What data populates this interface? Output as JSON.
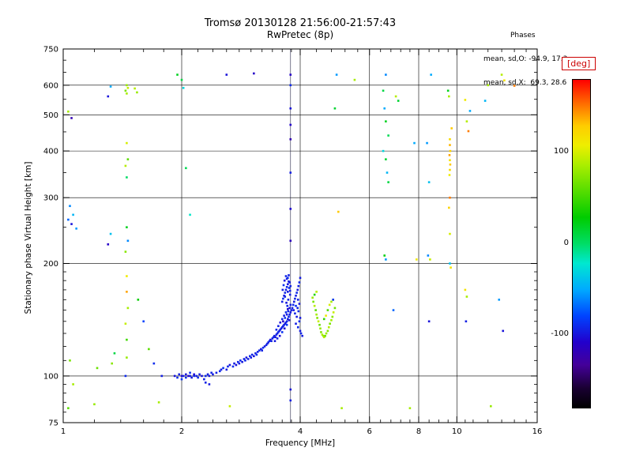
{
  "header": {
    "title": "Tromsø 20130128 21:56:00-21:57:43",
    "subtitle": "RwPretec (8p)",
    "phases": {
      "heading": "Phases",
      "line_o": "mean, sd,O: -94.9, 17.3",
      "line_x": "mean, sd,X:  69.3, 28.6"
    }
  },
  "chart_data": {
    "type": "scatter",
    "title": "Tromsø 20130128 21:56:00-21:57:43",
    "subtitle": "RwPretec (8p)",
    "xlabel": "Frequency [MHz]",
    "ylabel": "Stationary phase Virtual Height [km]",
    "xscale": "log",
    "yscale": "log",
    "xlim": [
      1,
      16
    ],
    "ylim": [
      75,
      750
    ],
    "xticks": [
      1,
      2,
      4,
      6,
      8,
      10,
      16
    ],
    "yticks": [
      75,
      100,
      200,
      300,
      400,
      500,
      600,
      750
    ],
    "x_minor_ticks": [
      1.2,
      1.4,
      1.6,
      1.8,
      2.2,
      2.4,
      2.6,
      2.8,
      3.0,
      3.2,
      3.4,
      3.6,
      3.8,
      4.4,
      4.8,
      5.2,
      5.6,
      6.4,
      6.8,
      7.2,
      7.6,
      8.5,
      9.0,
      9.5,
      10.5,
      11,
      12,
      13,
      14,
      15
    ],
    "y_minor_ticks": [
      80,
      85,
      90,
      95,
      110,
      120,
      130,
      140,
      150,
      160,
      170,
      180,
      190,
      250,
      350,
      450,
      550,
      650,
      700
    ],
    "grid": true,
    "interference_line_mhz": 3.78,
    "colorbar": {
      "label": "[deg]",
      "label_color": "#cc0000",
      "range": [
        -180,
        180
      ],
      "ticks": [
        100,
        0,
        -100
      ],
      "stops": [
        [
          0,
          "#000000"
        ],
        [
          0.06,
          "#1a0033"
        ],
        [
          0.13,
          "#440099"
        ],
        [
          0.2,
          "#2200cc"
        ],
        [
          0.28,
          "#0044ff"
        ],
        [
          0.36,
          "#00aaff"
        ],
        [
          0.44,
          "#00e8d0"
        ],
        [
          0.5,
          "#00dd66"
        ],
        [
          0.58,
          "#00cc00"
        ],
        [
          0.66,
          "#55dd00"
        ],
        [
          0.74,
          "#aaee00"
        ],
        [
          0.8,
          "#eeee00"
        ],
        [
          0.86,
          "#ffcc00"
        ],
        [
          0.92,
          "#ff7700"
        ],
        [
          1,
          "#ff0000"
        ]
      ]
    },
    "points": [
      [
        1.92,
        100,
        -100
      ],
      [
        1.95,
        99,
        -90
      ],
      [
        1.97,
        101,
        -95
      ],
      [
        2.0,
        100,
        -105
      ],
      [
        2.0,
        98,
        -85
      ],
      [
        2.02,
        100,
        -95
      ],
      [
        2.05,
        101,
        -100
      ],
      [
        2.05,
        99,
        -90
      ],
      [
        2.08,
        100,
        -110
      ],
      [
        2.1,
        100,
        -95
      ],
      [
        2.1,
        102,
        -88
      ],
      [
        2.12,
        99,
        -97
      ],
      [
        2.15,
        100,
        -92
      ],
      [
        2.15,
        101,
        -103
      ],
      [
        2.18,
        100,
        -95
      ],
      [
        2.2,
        99,
        -90
      ],
      [
        2.22,
        101,
        -96
      ],
      [
        2.25,
        100,
        -100
      ],
      [
        2.28,
        98,
        -94
      ],
      [
        2.3,
        100,
        -90
      ],
      [
        2.33,
        101,
        -95
      ],
      [
        2.35,
        100,
        -98
      ],
      [
        2.38,
        102,
        -92
      ],
      [
        2.4,
        101,
        -96
      ],
      [
        2.3,
        96,
        -93
      ],
      [
        2.35,
        95,
        -97
      ],
      [
        2.45,
        102,
        -95
      ],
      [
        2.5,
        103,
        -90
      ],
      [
        2.52,
        104,
        -95
      ],
      [
        2.55,
        105,
        -88
      ],
      [
        2.6,
        104,
        -97
      ],
      [
        2.62,
        106,
        -92
      ],
      [
        2.65,
        107,
        -99
      ],
      [
        2.7,
        106,
        -90
      ],
      [
        2.72,
        108,
        -95
      ],
      [
        2.75,
        107,
        -101
      ],
      [
        2.78,
        109,
        -93
      ],
      [
        2.8,
        108,
        -96
      ],
      [
        2.82,
        110,
        -89
      ],
      [
        2.85,
        109,
        -98
      ],
      [
        2.88,
        111,
        -94
      ],
      [
        2.9,
        110,
        -91
      ],
      [
        2.92,
        112,
        -99
      ],
      [
        2.95,
        111,
        -95
      ],
      [
        2.98,
        113,
        -90
      ],
      [
        3.0,
        112,
        -97
      ],
      [
        3.02,
        114,
        -93
      ],
      [
        3.05,
        113,
        -100
      ],
      [
        3.08,
        115,
        -95
      ],
      [
        3.1,
        114,
        -88
      ],
      [
        3.12,
        116,
        -96
      ],
      [
        3.15,
        117,
        -92
      ],
      [
        3.18,
        118,
        -98
      ],
      [
        3.2,
        117,
        -94
      ],
      [
        3.22,
        119,
        -90
      ],
      [
        3.25,
        120,
        -97
      ],
      [
        3.28,
        121,
        -93
      ],
      [
        3.3,
        122,
        -95
      ],
      [
        3.32,
        123,
        -96
      ],
      [
        3.34,
        124,
        -91
      ],
      [
        3.36,
        125,
        -99
      ],
      [
        3.38,
        124,
        -94
      ],
      [
        3.4,
        126,
        -97
      ],
      [
        3.42,
        127,
        -90
      ],
      [
        3.44,
        128,
        -95
      ],
      [
        3.46,
        127,
        -100
      ],
      [
        3.48,
        129,
        -93
      ],
      [
        3.5,
        130,
        -96
      ],
      [
        3.52,
        131,
        -89
      ],
      [
        3.54,
        132,
        -97
      ],
      [
        3.56,
        133,
        -94
      ],
      [
        3.58,
        134,
        -98
      ],
      [
        3.6,
        135,
        -92
      ],
      [
        3.62,
        136,
        -96
      ],
      [
        3.64,
        137,
        -91
      ],
      [
        3.66,
        138,
        -99
      ],
      [
        3.68,
        139,
        -95
      ],
      [
        3.7,
        140,
        -93
      ],
      [
        3.72,
        142,
        -97
      ],
      [
        3.74,
        144,
        -90
      ],
      [
        3.76,
        146,
        -95
      ],
      [
        3.78,
        148,
        -98
      ],
      [
        3.8,
        150,
        -94
      ],
      [
        3.55,
        128,
        -102
      ],
      [
        3.6,
        131,
        -87
      ],
      [
        3.65,
        134,
        -105
      ],
      [
        3.7,
        137,
        -85
      ],
      [
        3.75,
        141,
        -100
      ],
      [
        3.5,
        126,
        -93
      ],
      [
        3.45,
        124,
        -97
      ],
      [
        3.62,
        140,
        -110
      ],
      [
        3.66,
        143,
        -88
      ],
      [
        3.7,
        146,
        -96
      ],
      [
        3.73,
        149,
        -92
      ],
      [
        3.76,
        152,
        -99
      ],
      [
        3.78,
        155,
        -94
      ],
      [
        3.72,
        151,
        -105
      ],
      [
        3.68,
        148,
        -90
      ],
      [
        3.64,
        145,
        -97
      ],
      [
        3.6,
        142,
        -93
      ],
      [
        3.56,
        139,
        -100
      ],
      [
        3.52,
        136,
        -95
      ],
      [
        3.48,
        133,
        -91
      ],
      [
        3.6,
        158,
        -95
      ],
      [
        3.62,
        161,
        -90
      ],
      [
        3.64,
        164,
        -98
      ],
      [
        3.66,
        167,
        -93
      ],
      [
        3.68,
        170,
        -96
      ],
      [
        3.7,
        173,
        -91
      ],
      [
        3.72,
        176,
        -99
      ],
      [
        3.74,
        179,
        -94
      ],
      [
        3.7,
        182,
        -97
      ],
      [
        3.68,
        185,
        -92
      ],
      [
        3.65,
        180,
        -100
      ],
      [
        3.63,
        175,
        -88
      ],
      [
        3.61,
        170,
        -95
      ],
      [
        3.66,
        163,
        -93
      ],
      [
        3.72,
        168,
        -97
      ],
      [
        3.75,
        172,
        -90
      ],
      [
        3.77,
        165,
        -96
      ],
      [
        3.73,
        160,
        -94
      ],
      [
        3.69,
        157,
        -98
      ],
      [
        3.71,
        154,
        -92
      ],
      [
        3.74,
        186,
        -95
      ],
      [
        3.72,
        183,
        -89
      ],
      [
        3.76,
        178,
        -97
      ],
      [
        3.78,
        174,
        -93
      ],
      [
        3.77,
        169,
        -96
      ],
      [
        3.82,
        152,
        -95
      ],
      [
        3.84,
        155,
        -91
      ],
      [
        3.86,
        158,
        -97
      ],
      [
        3.88,
        161,
        -93
      ],
      [
        3.9,
        164,
        -96
      ],
      [
        3.92,
        167,
        -90
      ],
      [
        3.94,
        170,
        -98
      ],
      [
        3.96,
        174,
        -94
      ],
      [
        3.98,
        178,
        -92
      ],
      [
        4.0,
        183,
        -96
      ],
      [
        3.85,
        150,
        -99
      ],
      [
        3.9,
        154,
        -88
      ],
      [
        3.95,
        160,
        -95
      ],
      [
        3.88,
        147,
        -93
      ],
      [
        3.92,
        144,
        -97
      ],
      [
        3.96,
        149,
        -91
      ],
      [
        3.98,
        156,
        -98
      ],
      [
        3.94,
        152,
        -94
      ],
      [
        3.9,
        138,
        -95
      ],
      [
        3.95,
        135,
        -92
      ],
      [
        4.0,
        132,
        -97
      ],
      [
        4.02,
        130,
        -93
      ],
      [
        4.05,
        128,
        -96
      ],
      [
        3.98,
        140,
        -90
      ],
      [
        4.0,
        143,
        -98
      ],
      [
        4.3,
        162,
        80
      ],
      [
        4.32,
        158,
        70
      ],
      [
        4.35,
        154,
        90
      ],
      [
        4.38,
        150,
        60
      ],
      [
        4.4,
        146,
        85
      ],
      [
        4.42,
        143,
        75
      ],
      [
        4.45,
        140,
        95
      ],
      [
        4.48,
        137,
        65
      ],
      [
        4.5,
        134,
        80
      ],
      [
        4.52,
        131,
        72
      ],
      [
        4.55,
        129,
        88
      ],
      [
        4.58,
        128,
        78
      ],
      [
        4.6,
        127,
        92
      ],
      [
        4.63,
        128,
        68
      ],
      [
        4.66,
        130,
        82
      ],
      [
        4.7,
        132,
        74
      ],
      [
        4.73,
        135,
        90
      ],
      [
        4.76,
        138,
        70
      ],
      [
        4.8,
        141,
        85
      ],
      [
        4.83,
        144,
        76
      ],
      [
        4.86,
        148,
        95
      ],
      [
        4.9,
        152,
        66
      ],
      [
        4.75,
        155,
        100
      ],
      [
        4.7,
        150,
        55
      ],
      [
        4.65,
        145,
        110
      ],
      [
        4.6,
        142,
        45
      ],
      [
        4.8,
        158,
        85
      ],
      [
        4.85,
        160,
        75
      ],
      [
        4.35,
        165,
        40
      ],
      [
        4.4,
        168,
        90
      ],
      [
        3.78,
        640,
        -110
      ],
      [
        3.78,
        600,
        -90
      ],
      [
        3.78,
        520,
        -100
      ],
      [
        3.78,
        470,
        -108
      ],
      [
        3.78,
        430,
        -120
      ],
      [
        3.78,
        350,
        -95
      ],
      [
        3.78,
        280,
        -105
      ],
      [
        3.78,
        230,
        -115
      ],
      [
        3.78,
        92,
        -100
      ],
      [
        3.78,
        86,
        -95
      ],
      [
        1.45,
        600,
        80
      ],
      [
        1.46,
        590,
        95
      ],
      [
        1.44,
        580,
        70
      ],
      [
        1.45,
        570,
        85
      ],
      [
        1.45,
        420,
        100
      ],
      [
        1.46,
        380,
        60
      ],
      [
        1.44,
        365,
        90
      ],
      [
        1.45,
        340,
        0
      ],
      [
        1.45,
        250,
        20
      ],
      [
        1.46,
        230,
        -60
      ],
      [
        1.44,
        215,
        75
      ],
      [
        1.45,
        185,
        110
      ],
      [
        1.45,
        168,
        140
      ],
      [
        1.46,
        152,
        85
      ],
      [
        1.44,
        138,
        95
      ],
      [
        1.45,
        125,
        50
      ],
      [
        1.45,
        112,
        80
      ],
      [
        1.44,
        100,
        -90
      ],
      [
        1.32,
        595,
        -50
      ],
      [
        1.3,
        560,
        -100
      ],
      [
        1.35,
        115,
        10
      ],
      [
        1.33,
        108,
        75
      ],
      [
        1.3,
        225,
        -110
      ],
      [
        1.32,
        240,
        -40
      ],
      [
        1.03,
        510,
        85
      ],
      [
        1.05,
        490,
        -120
      ],
      [
        1.04,
        285,
        -60
      ],
      [
        1.06,
        270,
        -45
      ],
      [
        1.03,
        262,
        -70
      ],
      [
        1.05,
        255,
        -100
      ],
      [
        1.08,
        248,
        -55
      ],
      [
        1.04,
        110,
        70
      ],
      [
        1.06,
        95,
        85
      ],
      [
        1.03,
        82,
        60
      ],
      [
        1.2,
        84,
        80
      ],
      [
        1.22,
        105,
        65
      ],
      [
        1.55,
        160,
        30
      ],
      [
        1.6,
        140,
        -80
      ],
      [
        1.65,
        118,
        60
      ],
      [
        1.7,
        108,
        -90
      ],
      [
        1.75,
        85,
        85
      ],
      [
        1.78,
        100,
        -95
      ],
      [
        1.52,
        588,
        90
      ],
      [
        1.54,
        574,
        80
      ],
      [
        1.95,
        640,
        20
      ],
      [
        2.0,
        620,
        10
      ],
      [
        2.02,
        590,
        -30
      ],
      [
        2.05,
        360,
        5
      ],
      [
        2.1,
        270,
        -20
      ],
      [
        2.6,
        640,
        -100
      ],
      [
        2.65,
        83,
        95
      ],
      [
        3.05,
        645,
        -110
      ],
      [
        4.95,
        640,
        -55
      ],
      [
        4.9,
        520,
        15
      ],
      [
        5.0,
        275,
        130
      ],
      [
        4.85,
        160,
        -85
      ],
      [
        5.1,
        82,
        85
      ],
      [
        5.5,
        620,
        85
      ],
      [
        6.6,
        640,
        -60
      ],
      [
        6.5,
        580,
        10
      ],
      [
        6.55,
        520,
        -50
      ],
      [
        6.6,
        480,
        20
      ],
      [
        6.7,
        440,
        5
      ],
      [
        6.5,
        400,
        -30
      ],
      [
        6.6,
        380,
        15
      ],
      [
        6.65,
        350,
        -45
      ],
      [
        6.7,
        330,
        10
      ],
      [
        6.55,
        210,
        25
      ],
      [
        6.6,
        205,
        -55
      ],
      [
        7.0,
        560,
        90
      ],
      [
        7.1,
        545,
        15
      ],
      [
        6.9,
        150,
        -70
      ],
      [
        7.6,
        82,
        85
      ],
      [
        7.8,
        420,
        -50
      ],
      [
        7.9,
        205,
        110
      ],
      [
        8.4,
        420,
        -55
      ],
      [
        8.5,
        330,
        -40
      ],
      [
        8.45,
        210,
        -60
      ],
      [
        8.55,
        205,
        95
      ],
      [
        8.5,
        140,
        -100
      ],
      [
        8.6,
        640,
        -50
      ],
      [
        9.6,
        430,
        120
      ],
      [
        9.6,
        415,
        135
      ],
      [
        9.62,
        400,
        125
      ],
      [
        9.58,
        390,
        140
      ],
      [
        9.6,
        378,
        115
      ],
      [
        9.62,
        368,
        130
      ],
      [
        9.6,
        356,
        120
      ],
      [
        9.58,
        345,
        110
      ],
      [
        9.6,
        300,
        150
      ],
      [
        9.55,
        282,
        125
      ],
      [
        9.6,
        240,
        100
      ],
      [
        9.5,
        580,
        20
      ],
      [
        9.55,
        560,
        85
      ],
      [
        9.6,
        200,
        -40
      ],
      [
        9.65,
        195,
        115
      ],
      [
        9.7,
        460,
        130
      ],
      [
        10.5,
        548,
        110
      ],
      [
        10.6,
        480,
        90
      ],
      [
        10.7,
        452,
        150
      ],
      [
        10.5,
        170,
        115
      ],
      [
        10.6,
        163,
        85
      ],
      [
        10.55,
        140,
        -95
      ],
      [
        10.8,
        512,
        -50
      ],
      [
        12.0,
        600,
        85
      ],
      [
        11.8,
        545,
        -45
      ],
      [
        12.2,
        83,
        80
      ],
      [
        13.0,
        640,
        90
      ],
      [
        13.2,
        618,
        115
      ],
      [
        12.8,
        160,
        -55
      ],
      [
        13.1,
        132,
        -100
      ],
      [
        14.0,
        598,
        150
      ]
    ]
  }
}
